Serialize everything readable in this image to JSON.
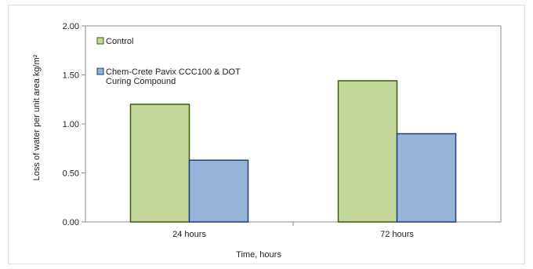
{
  "chart_data": {
    "type": "bar",
    "categories": [
      "24 hours",
      "72 hours"
    ],
    "series": [
      {
        "name": "Control",
        "values": [
          1.2,
          1.44
        ],
        "color": "#c4d79b",
        "stroke": "#3a5e10"
      },
      {
        "name": "Chem-Crete Pavix CCC100 & DOT Curing Compound",
        "values": [
          0.63,
          0.9
        ],
        "color": "#95b3d7",
        "stroke": "#1f3f7a"
      }
    ],
    "legend_lines": [
      [
        "Control"
      ],
      [
        "Chem-Crete Pavix CCC100 & DOT",
        "Curing Compound"
      ]
    ],
    "xlabel": "Time, hours",
    "ylabel": "Loss of water per unit area kg/m²",
    "ylim": [
      0,
      2.0
    ],
    "yticks": [
      "0.00",
      "0.50",
      "1.00",
      "1.50",
      "2.00"
    ],
    "grid": false,
    "legend_position": "top-left"
  }
}
